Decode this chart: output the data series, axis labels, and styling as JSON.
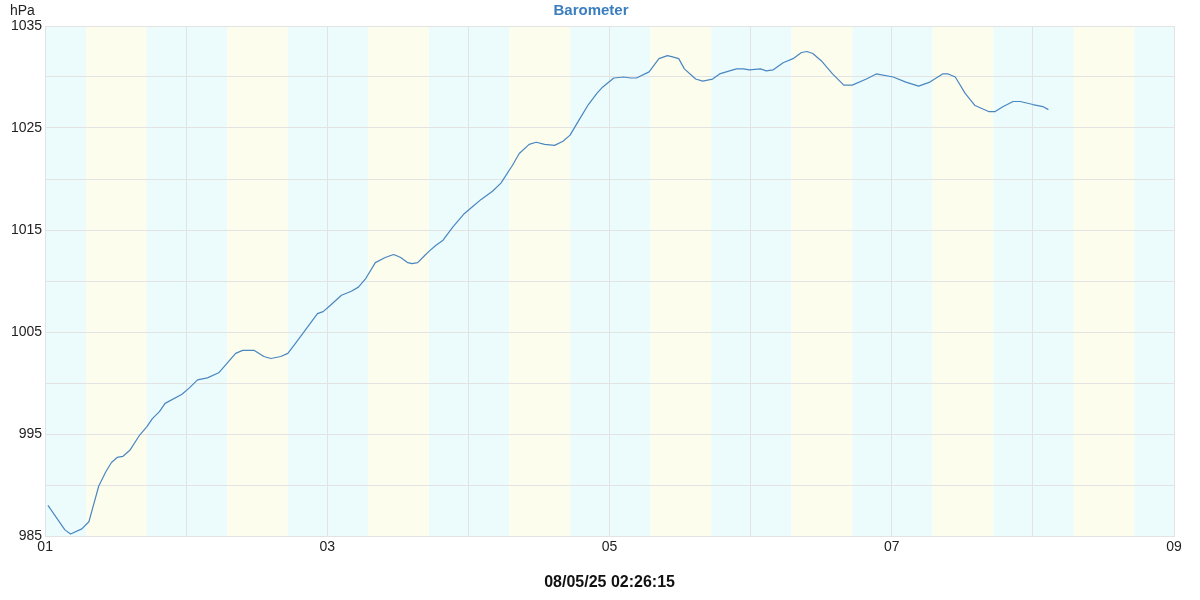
{
  "chart_data": {
    "type": "line",
    "title": "Barometer",
    "xlabel": "08/05/25 02:26:15",
    "ylabel": "hPa",
    "xlim": [
      1,
      9
    ],
    "xticks": [
      {
        "value": 1,
        "label": "01"
      },
      {
        "value": 2,
        "label": null
      },
      {
        "value": 3,
        "label": "03"
      },
      {
        "value": 4,
        "label": null
      },
      {
        "value": 5,
        "label": "05"
      },
      {
        "value": 6,
        "label": null
      },
      {
        "value": 7,
        "label": "07"
      },
      {
        "value": 8,
        "label": null
      },
      {
        "value": 9,
        "label": "09"
      }
    ],
    "ylim": [
      985,
      1035
    ],
    "yticks": [
      985,
      {
        "value": 990,
        "label": null
      },
      995,
      {
        "value": 1000,
        "label": null
      },
      1005,
      {
        "value": 1010,
        "label": null
      },
      1015,
      {
        "value": 1020,
        "label": null
      },
      1025,
      {
        "value": 1030,
        "label": null
      },
      1035
    ],
    "grid": true,
    "legend": false,
    "marker": "none",
    "line_style": "solid",
    "bands": [
      {
        "axis": "x",
        "from": 1,
        "to": 1.29,
        "color": "#ecfcfc"
      },
      {
        "axis": "x",
        "from": 1.29,
        "to": 1.72,
        "color": "#fdfdee"
      },
      {
        "axis": "x",
        "from": 1.72,
        "to": 2.29,
        "color": "#ecfcfc"
      },
      {
        "axis": "x",
        "from": 2.29,
        "to": 2.72,
        "color": "#fdfdee"
      },
      {
        "axis": "x",
        "from": 2.72,
        "to": 3.29,
        "color": "#ecfcfc"
      },
      {
        "axis": "x",
        "from": 3.29,
        "to": 3.72,
        "color": "#fdfdee"
      },
      {
        "axis": "x",
        "from": 3.72,
        "to": 4.29,
        "color": "#ecfcfc"
      },
      {
        "axis": "x",
        "from": 4.29,
        "to": 4.72,
        "color": "#fdfdee"
      },
      {
        "axis": "x",
        "from": 4.72,
        "to": 5.29,
        "color": "#ecfcfc"
      },
      {
        "axis": "x",
        "from": 5.29,
        "to": 5.72,
        "color": "#fdfdee"
      },
      {
        "axis": "x",
        "from": 5.72,
        "to": 6.29,
        "color": "#ecfcfc"
      },
      {
        "axis": "x",
        "from": 6.29,
        "to": 6.72,
        "color": "#fdfdee"
      },
      {
        "axis": "x",
        "from": 6.72,
        "to": 7.29,
        "color": "#ecfcfc"
      },
      {
        "axis": "x",
        "from": 7.29,
        "to": 7.72,
        "color": "#fdfdee"
      },
      {
        "axis": "x",
        "from": 7.72,
        "to": 8.29,
        "color": "#ecfcfc"
      },
      {
        "axis": "x",
        "from": 8.29,
        "to": 8.72,
        "color": "#fdfdee"
      },
      {
        "axis": "x",
        "from": 8.72,
        "to": 9,
        "color": "#ecfcfc"
      }
    ],
    "series": [
      {
        "color": "#4a86c0",
        "x": [
          1.02,
          1.14,
          1.18,
          1.26,
          1.31,
          1.38,
          1.43,
          1.47,
          1.51,
          1.55,
          1.6,
          1.67,
          1.72,
          1.76,
          1.81,
          1.85,
          1.97,
          2.02,
          2.08,
          2.15,
          2.23,
          2.35,
          2.4,
          2.48,
          2.55,
          2.6,
          2.67,
          2.72,
          2.77,
          2.93,
          2.97,
          3.02,
          3.1,
          3.17,
          3.22,
          3.27,
          3.34,
          3.41,
          3.47,
          3.52,
          3.57,
          3.6,
          3.64,
          3.69,
          3.72,
          3.77,
          3.82,
          3.89,
          3.97,
          4.03,
          4.09,
          4.17,
          4.23,
          4.31,
          4.36,
          4.43,
          4.48,
          4.54,
          4.61,
          4.67,
          4.72,
          4.78,
          4.85,
          4.91,
          4.95,
          5.03,
          5.1,
          5.15,
          5.19,
          5.28,
          5.35,
          5.41,
          5.44,
          5.49,
          5.53,
          5.61,
          5.66,
          5.73,
          5.78,
          5.85,
          5.9,
          5.95,
          5.99,
          6.07,
          6.11,
          6.16,
          6.23,
          6.3,
          6.36,
          6.4,
          6.44,
          6.5,
          6.58,
          6.66,
          6.72,
          6.82,
          6.89,
          7.01,
          7.1,
          7.19,
          7.27,
          7.36,
          7.4,
          7.45,
          7.52,
          7.59,
          7.69,
          7.73,
          7.79,
          7.86,
          7.91,
          8,
          8.07,
          8.11
        ],
        "values": [
          988.0,
          985.6,
          985.2,
          985.7,
          986.4,
          989.9,
          991.3,
          992.2,
          992.7,
          992.8,
          993.4,
          994.9,
          995.7,
          996.5,
          997.2,
          998.0,
          998.9,
          999.5,
          1000.3,
          1000.5,
          1001.0,
          1002.9,
          1003.2,
          1003.2,
          1002.6,
          1002.4,
          1002.6,
          1002.9,
          1003.8,
          1006.8,
          1007.0,
          1007.6,
          1008.6,
          1009.0,
          1009.4,
          1010.2,
          1011.8,
          1012.3,
          1012.6,
          1012.3,
          1011.8,
          1011.7,
          1011.8,
          1012.5,
          1012.9,
          1013.5,
          1014.0,
          1015.3,
          1016.6,
          1017.3,
          1018.0,
          1018.8,
          1019.6,
          1021.3,
          1022.5,
          1023.4,
          1023.6,
          1023.4,
          1023.3,
          1023.7,
          1024.3,
          1025.7,
          1027.3,
          1028.4,
          1029.0,
          1029.9,
          1030.0,
          1029.9,
          1029.9,
          1030.5,
          1031.8,
          1032.1,
          1032.0,
          1031.8,
          1030.8,
          1029.8,
          1029.6,
          1029.8,
          1030.3,
          1030.6,
          1030.8,
          1030.8,
          1030.7,
          1030.8,
          1030.6,
          1030.7,
          1031.4,
          1031.8,
          1032.4,
          1032.5,
          1032.3,
          1031.6,
          1030.3,
          1029.2,
          1029.2,
          1029.8,
          1030.3,
          1030.0,
          1029.5,
          1029.1,
          1029.5,
          1030.3,
          1030.3,
          1030.0,
          1028.4,
          1027.2,
          1026.6,
          1026.6,
          1027.1,
          1027.6,
          1027.6,
          1027.3,
          1027.1,
          1026.8
        ]
      }
    ]
  }
}
